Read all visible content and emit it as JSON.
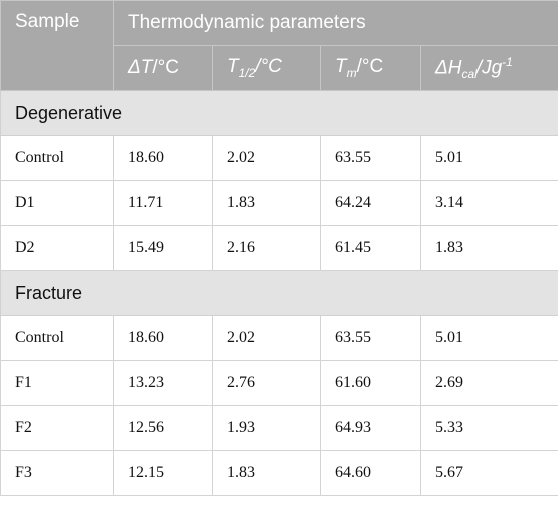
{
  "table": {
    "header": {
      "sample": "Sample",
      "group": "Thermodynamic parameters",
      "columns": [
        [
          {
            "i": "ΔT"
          },
          {
            "t": "/°C"
          }
        ],
        [
          {
            "i": "T"
          },
          {
            "sub": "1/2"
          },
          {
            "i": "/°C"
          }
        ],
        [
          {
            "i": "T"
          },
          {
            "sub": "m"
          },
          {
            "t": "/°C"
          }
        ],
        [
          {
            "i": "ΔH"
          },
          {
            "sub": "cal"
          },
          {
            "i": "/Jg"
          },
          {
            "sup": "-1"
          }
        ]
      ]
    },
    "sections": [
      {
        "title": "Degenerative",
        "rows": [
          [
            "Control",
            "18.60",
            "2.02",
            "63.55",
            "5.01"
          ],
          [
            "D1",
            "11.71",
            "1.83",
            "64.24",
            "3.14"
          ],
          [
            "D2",
            "15.49",
            "2.16",
            "61.45",
            "1.83"
          ]
        ]
      },
      {
        "title": "Fracture",
        "rows": [
          [
            "Control",
            "18.60",
            "2.02",
            "63.55",
            "5.01"
          ],
          [
            "F1",
            "13.23",
            "2.76",
            "61.60",
            "2.69"
          ],
          [
            "F2",
            "12.56",
            "1.93",
            "64.93",
            "5.33"
          ],
          [
            "F3",
            "12.15",
            "1.83",
            "64.60",
            "5.67"
          ]
        ]
      }
    ]
  }
}
